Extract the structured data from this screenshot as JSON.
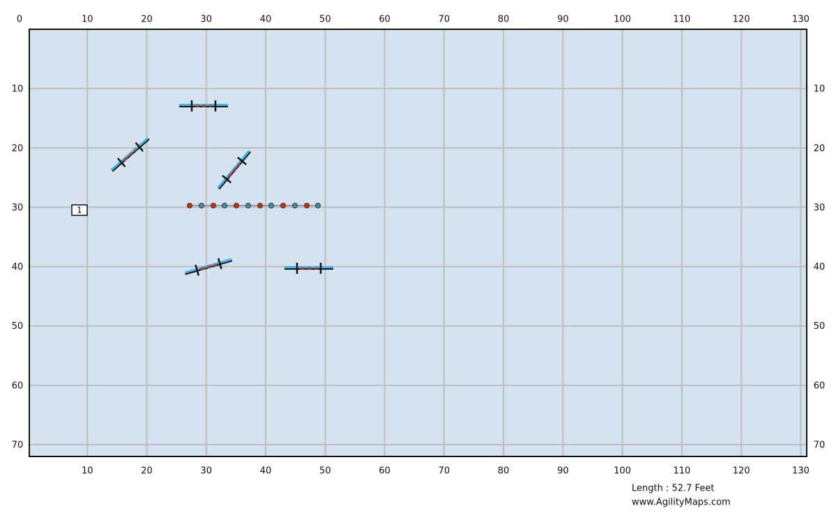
{
  "axes": {
    "xlim": [
      0,
      131
    ],
    "ylim": [
      0,
      72
    ],
    "top_ticks": [
      0,
      10,
      20,
      30,
      40,
      50,
      60,
      70,
      80,
      90,
      100,
      110,
      120,
      130
    ],
    "bottom_ticks": [
      10,
      20,
      30,
      40,
      50,
      60,
      70,
      80,
      90,
      100,
      110,
      120,
      130
    ],
    "left_ticks": [
      10,
      20,
      30,
      40,
      50,
      60,
      70
    ],
    "right_ticks": [
      10,
      20,
      30,
      40,
      50,
      60,
      70
    ]
  },
  "course": {
    "markers": [
      "1"
    ]
  },
  "footer": {
    "length": "Length : 52.7 Feet",
    "website": "www.AgilityMaps.com"
  }
}
